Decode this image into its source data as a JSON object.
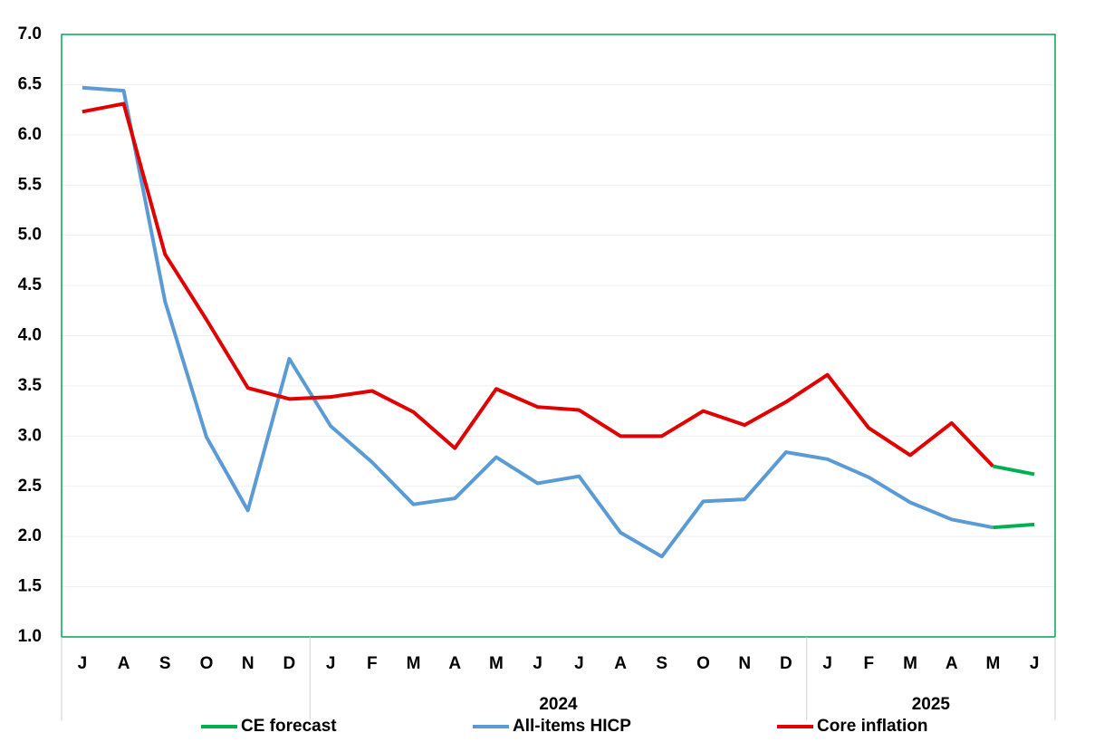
{
  "chart_data": {
    "type": "line",
    "categories": [
      "J",
      "A",
      "S",
      "O",
      "N",
      "D",
      "J",
      "F",
      "M",
      "A",
      "M",
      "J",
      "J",
      "A",
      "S",
      "O",
      "N",
      "D",
      "J",
      "F",
      "M",
      "A",
      "M",
      "J"
    ],
    "groups": [
      {
        "label": null,
        "count": 6
      },
      {
        "label": "2024",
        "count": 12
      },
      {
        "label": "2025",
        "count": 6
      }
    ],
    "series": [
      {
        "name": "CE forecast",
        "color": "#00b050",
        "values": [
          null,
          null,
          null,
          null,
          null,
          null,
          null,
          null,
          null,
          null,
          null,
          null,
          null,
          null,
          null,
          null,
          null,
          null,
          null,
          null,
          null,
          null,
          2.09,
          2.12
        ]
      },
      {
        "name": "All-items HICP",
        "color": "#5b9bd5",
        "values": [
          6.47,
          6.44,
          4.34,
          2.99,
          2.26,
          3.77,
          3.1,
          2.74,
          2.32,
          2.38,
          2.79,
          2.53,
          2.6,
          2.04,
          1.8,
          2.35,
          2.37,
          2.84,
          2.77,
          2.59,
          2.34,
          2.17,
          2.09,
          null
        ]
      },
      {
        "name": "Core inflation",
        "color": "#e00000",
        "values": [
          6.23,
          6.31,
          4.81,
          4.16,
          3.48,
          3.37,
          3.39,
          3.45,
          3.24,
          2.88,
          3.47,
          3.29,
          3.26,
          3.0,
          3.0,
          3.25,
          3.11,
          3.34,
          3.61,
          3.08,
          2.81,
          3.13,
          2.7,
          null
        ]
      },
      {
        "color": "#00b050",
        "values": [
          null,
          null,
          null,
          null,
          null,
          null,
          null,
          null,
          null,
          null,
          null,
          null,
          null,
          null,
          null,
          null,
          null,
          null,
          null,
          null,
          null,
          null,
          2.7,
          2.62
        ]
      }
    ],
    "ylim": [
      1.0,
      7.0
    ],
    "yticks": [
      {
        "value": 1,
        "label": "1.0"
      },
      {
        "value": 1.5,
        "label": "1.5"
      },
      {
        "value": 2,
        "label": "2.0"
      },
      {
        "value": 2.5,
        "label": "2.5"
      },
      {
        "value": 3,
        "label": "3.0"
      },
      {
        "value": 3.5,
        "label": "3.5"
      },
      {
        "value": 4,
        "label": "4.0"
      },
      {
        "value": 4.5,
        "label": "4.5"
      },
      {
        "value": 5,
        "label": "5.0"
      },
      {
        "value": 5.5,
        "label": "5.5"
      },
      {
        "value": 6,
        "label": "6.0"
      },
      {
        "value": 6.5,
        "label": "6.5"
      },
      {
        "value": 7,
        "label": "7.0"
      }
    ],
    "grid": true,
    "legend": "bottom"
  }
}
